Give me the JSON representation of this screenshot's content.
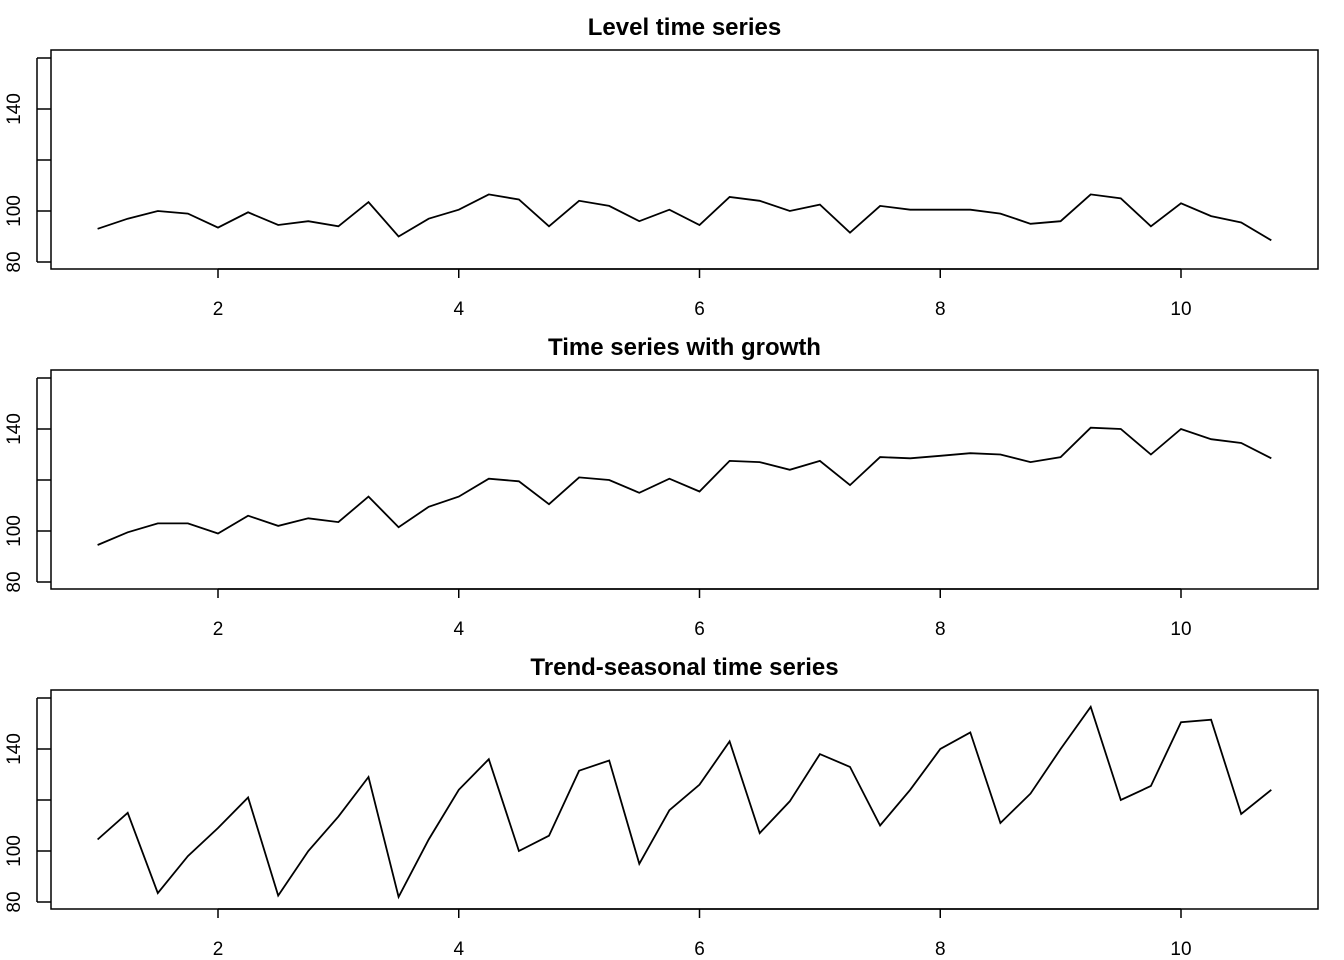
{
  "chart_data": [
    {
      "type": "line",
      "title": "Level time series",
      "xlim": [
        1,
        10.75
      ],
      "ylim": [
        80,
        160
      ],
      "x_ticks": [
        "2",
        "4",
        "6",
        "8",
        "10"
      ],
      "y_ticks": [
        "80",
        "100",
        "140"
      ],
      "x": [
        1,
        1.25,
        1.5,
        1.75,
        2,
        2.25,
        2.5,
        2.75,
        3,
        3.25,
        3.5,
        3.75,
        4,
        4.25,
        4.5,
        4.75,
        5,
        5.25,
        5.5,
        5.75,
        6,
        6.25,
        6.5,
        6.75,
        7,
        7.25,
        7.5,
        7.75,
        8,
        8.25,
        8.5,
        8.75,
        9,
        9.25,
        9.5,
        9.75,
        10,
        10.25,
        10.5,
        10.75
      ],
      "values": [
        93,
        97,
        100,
        99,
        93.5,
        99.5,
        94.5,
        96,
        94,
        103.5,
        90,
        97,
        100.5,
        106.5,
        104.5,
        94,
        104,
        102,
        96,
        100.5,
        94.5,
        105.5,
        104,
        100,
        102.5,
        91.5,
        102,
        100.5,
        100.5,
        100.5,
        99,
        95,
        96,
        106.5,
        105,
        94,
        103,
        98,
        95.5,
        88.5
      ]
    },
    {
      "type": "line",
      "title": "Time series with growth",
      "xlim": [
        1,
        10.75
      ],
      "ylim": [
        80,
        160
      ],
      "x_ticks": [
        "2",
        "4",
        "6",
        "8",
        "10"
      ],
      "y_ticks": [
        "80",
        "100",
        "140"
      ],
      "x": [
        1,
        1.25,
        1.5,
        1.75,
        2,
        2.25,
        2.5,
        2.75,
        3,
        3.25,
        3.5,
        3.75,
        4,
        4.25,
        4.5,
        4.75,
        5,
        5.25,
        5.5,
        5.75,
        6,
        6.25,
        6.5,
        6.75,
        7,
        7.25,
        7.5,
        7.75,
        8,
        8.25,
        8.5,
        8.75,
        9,
        9.25,
        9.5,
        9.75,
        10,
        10.25,
        10.5,
        10.75
      ],
      "values": [
        94.5,
        99.5,
        103,
        103,
        99,
        106,
        102,
        105,
        103.5,
        113.5,
        101.5,
        109.5,
        113.5,
        120.5,
        119.5,
        110.5,
        121,
        120,
        115,
        120.5,
        115.5,
        127.5,
        127,
        124,
        127.5,
        118,
        129,
        128.5,
        129.5,
        130.5,
        130,
        127,
        129,
        140.5,
        140,
        130,
        140,
        136,
        134.5,
        128.5
      ]
    },
    {
      "type": "line",
      "title": "Trend-seasonal time series",
      "xlim": [
        1,
        10.75
      ],
      "ylim": [
        80,
        160
      ],
      "x_ticks": [
        "2",
        "4",
        "6",
        "8",
        "10"
      ],
      "y_ticks": [
        "80",
        "100",
        "140"
      ],
      "x": [
        1,
        1.25,
        1.5,
        1.75,
        2,
        2.25,
        2.5,
        2.75,
        3,
        3.25,
        3.5,
        3.75,
        4,
        4.25,
        4.5,
        4.75,
        5,
        5.25,
        5.5,
        5.75,
        6,
        6.25,
        6.5,
        6.75,
        7,
        7.25,
        7.5,
        7.75,
        8,
        8.25,
        8.5,
        8.75,
        9,
        9.25,
        9.5,
        9.75,
        10,
        10.25,
        10.5,
        10.75
      ],
      "values": [
        104.5,
        115,
        83.5,
        98,
        109,
        121,
        82.5,
        100,
        113.5,
        129,
        82,
        104.5,
        124,
        136,
        100,
        106,
        131.5,
        135.5,
        95,
        116,
        126,
        143,
        107,
        119.5,
        138,
        133,
        110,
        124,
        140,
        146.5,
        111,
        122.5,
        140,
        156.5,
        120,
        125.5,
        150.5,
        151.5,
        114.5,
        124
      ]
    }
  ]
}
